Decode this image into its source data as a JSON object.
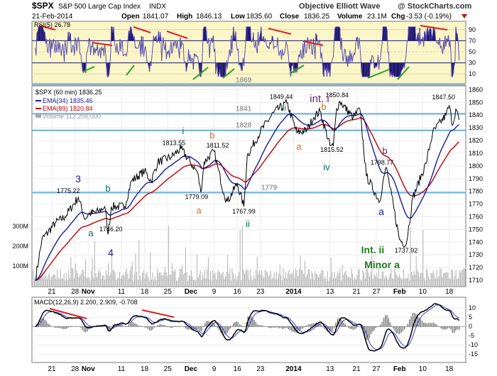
{
  "header": {
    "symbol": "$SPX",
    "name": "S&P 500 Large Cap Index",
    "exchange": "INDX",
    "watermark": "Objective Elliott Wave",
    "credit": "@ StockCharts.com",
    "date": "21-Feb-2014",
    "quote": {
      "open_label": "Open",
      "open": "1841.07",
      "high_label": "High",
      "high": "1846.13",
      "low_label": "Low",
      "low": "1835.60",
      "close_label": "Close",
      "close": "1836.25",
      "volume_label": "Volume",
      "volume": "23.1M",
      "chg_label": "Chg",
      "chg": "-3.53 (-0.19%)"
    }
  },
  "rsi_panel": {
    "label": "RSI(5) 26.78",
    "ticks": [
      90,
      70,
      50,
      30,
      10
    ],
    "overbought": 70,
    "oversold": 30
  },
  "legend": {
    "price": "$SPX (60 min) 1836.25",
    "ema34": "EMA(34) 1835.46",
    "ema89": "EMA(89) 1820.84",
    "volume": "Volume 112,200,000"
  },
  "volume_labels": [
    "300M",
    "200M",
    "100M"
  ],
  "macd_panel": {
    "label": "MACD(12,26,9) 2.200, 2.909, -0.708",
    "ticks": [
      10,
      5,
      0,
      -5,
      -10,
      -15
    ]
  },
  "x_axis_labels": [
    "21",
    "28",
    "Nov",
    "11",
    "18",
    "25",
    "Dec",
    "9",
    "16",
    "23",
    "2014",
    "13",
    "21",
    "27",
    "Feb",
    "10",
    "18"
  ],
  "colors": {
    "price": "#000000",
    "ema34": "#1a1aa0",
    "ema89": "#c00000",
    "wave_blue": "#1a1a8c",
    "wave_teal": "#0a6b5a",
    "wave_orange": "#d2691e",
    "wave_purple": "#6b1f6b",
    "wave_green": "#1e7a1e",
    "level_line": "#6aaede",
    "panel_bg": "#fbf6c8",
    "rsi_fill": "#1c1470",
    "divergence": "#e02020"
  },
  "chart_data": {
    "type": "line",
    "title": "$SPX S&P 500 Large Cap Index INDX",
    "xlabel": "",
    "ylabel": "",
    "ylim": [
      1705,
      1863
    ],
    "y_ticks": [
      1710,
      1720,
      1730,
      1740,
      1750,
      1760,
      1770,
      1780,
      1790,
      1800,
      1810,
      1820,
      1830,
      1840,
      1850,
      1860
    ],
    "series": [
      {
        "name": "$SPX (60 min)",
        "points": [
          [
            "2013-10-16",
            1710
          ],
          [
            "2013-10-18",
            1742
          ],
          [
            "2013-10-22",
            1755
          ],
          [
            "2013-10-25",
            1760
          ],
          [
            "2013-10-29",
            1775.22
          ],
          [
            "2013-10-31",
            1758
          ],
          [
            "2013-11-01",
            1762
          ],
          [
            "2013-11-04",
            1764
          ],
          [
            "2013-11-06",
            1768
          ],
          [
            "2013-11-07",
            1746.2
          ],
          [
            "2013-11-08",
            1768
          ],
          [
            "2013-11-12",
            1768
          ],
          [
            "2013-11-14",
            1788
          ],
          [
            "2013-11-18",
            1796
          ],
          [
            "2013-11-20",
            1788
          ],
          [
            "2013-11-22",
            1803
          ],
          [
            "2013-11-26",
            1807
          ],
          [
            "2013-11-29",
            1813.55
          ],
          [
            "2013-12-02",
            1802
          ],
          [
            "2013-12-04",
            1795
          ],
          [
            "2013-12-05",
            1779.09
          ],
          [
            "2013-12-06",
            1803
          ],
          [
            "2013-12-09",
            1811.52
          ],
          [
            "2013-12-10",
            1800
          ],
          [
            "2013-12-12",
            1778
          ],
          [
            "2013-12-13",
            1772
          ],
          [
            "2013-12-16",
            1786
          ],
          [
            "2013-12-18",
            1767.99
          ],
          [
            "2013-12-19",
            1808
          ],
          [
            "2013-12-23",
            1827
          ],
          [
            "2013-12-27",
            1842
          ],
          [
            "2013-12-31",
            1849.44
          ],
          [
            "2014-01-03",
            1826
          ],
          [
            "2014-01-06",
            1828
          ],
          [
            "2014-01-08",
            1838
          ],
          [
            "2014-01-10",
            1843
          ],
          [
            "2014-01-13",
            1816
          ],
          [
            "2014-01-14",
            1815.52
          ],
          [
            "2014-01-15",
            1845
          ],
          [
            "2014-01-16",
            1850.84
          ],
          [
            "2014-01-20",
            1838
          ],
          [
            "2014-01-22",
            1845
          ],
          [
            "2014-01-24",
            1792
          ],
          [
            "2014-01-28",
            1772
          ],
          [
            "2014-01-29",
            1788
          ],
          [
            "2014-01-30",
            1798.77
          ],
          [
            "2014-02-03",
            1742
          ],
          [
            "2014-02-05",
            1737.92
          ],
          [
            "2014-02-07",
            1775
          ],
          [
            "2014-02-11",
            1802
          ],
          [
            "2014-02-13",
            1826
          ],
          [
            "2014-02-17",
            1840
          ],
          [
            "2014-02-18",
            1847.5
          ],
          [
            "2014-02-19",
            1832
          ],
          [
            "2014-02-20",
            1845
          ],
          [
            "2014-02-21",
            1836.25
          ]
        ]
      },
      {
        "name": "EMA(34)",
        "last": 1835.46
      },
      {
        "name": "EMA(89)",
        "last": 1820.84
      }
    ],
    "horizontal_levels": [
      1869,
      1841,
      1828,
      1779
    ],
    "annotations": [
      {
        "text": "1775.22",
        "date": "2013-10-29",
        "y": 1775.22
      },
      {
        "text": "1746.20",
        "date": "2013-11-07",
        "y": 1746.2
      },
      {
        "text": "1813.55",
        "date": "2013-11-29",
        "y": 1813.55
      },
      {
        "text": "1811.52",
        "date": "2013-12-09",
        "y": 1811.52
      },
      {
        "text": "1779.09",
        "date": "2013-12-05",
        "y": 1779.09
      },
      {
        "text": "1767.99",
        "date": "2013-12-18",
        "y": 1767.99
      },
      {
        "text": "1849.44",
        "date": "2013-12-31",
        "y": 1849.44
      },
      {
        "text": "1850.84",
        "date": "2014-01-16",
        "y": 1850.84
      },
      {
        "text": "1815.52",
        "date": "2014-01-14",
        "y": 1815.52
      },
      {
        "text": "1798.77",
        "date": "2014-01-30",
        "y": 1798.77
      },
      {
        "text": "1737.92",
        "date": "2014-02-05",
        "y": 1737.92
      },
      {
        "text": "1847.50",
        "date": "2014-02-18",
        "y": 1847.5
      }
    ],
    "wave_labels": [
      "3",
      "b",
      "a",
      "4",
      "i",
      "b",
      "a",
      "ii",
      "iii",
      "a",
      "b",
      "int. i",
      "iv",
      "b",
      "a",
      "Int. ii",
      "Minor a"
    ]
  }
}
